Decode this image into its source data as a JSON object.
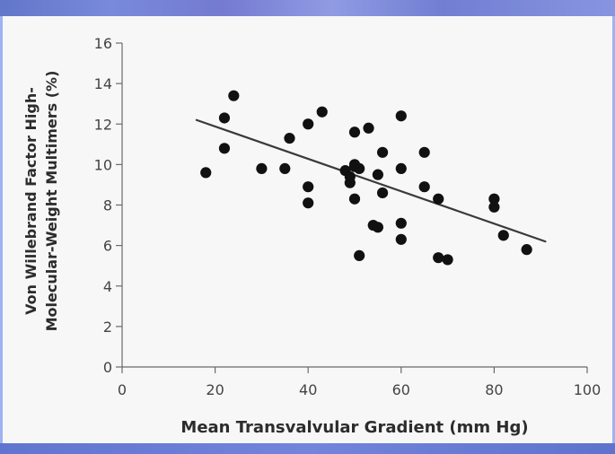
{
  "chart_data": {
    "type": "scatter",
    "xlabel": "Mean Transvalvular Gradient (mm Hg)",
    "ylabel": [
      "Von Willebrand Factor High-",
      "Molecular-Weight Multimers (%)"
    ],
    "xlim": [
      0,
      100
    ],
    "ylim": [
      0,
      16
    ],
    "xticks": [
      0,
      20,
      40,
      60,
      80,
      100
    ],
    "yticks": [
      0,
      2,
      4,
      6,
      8,
      10,
      12,
      14,
      16
    ],
    "grid": false,
    "trendline": {
      "x": [
        16,
        91
      ],
      "y": [
        12.2,
        6.2
      ]
    },
    "points": [
      {
        "x": 18,
        "y": 9.6
      },
      {
        "x": 22,
        "y": 12.3
      },
      {
        "x": 22,
        "y": 10.8
      },
      {
        "x": 24,
        "y": 13.4
      },
      {
        "x": 30,
        "y": 9.8
      },
      {
        "x": 35,
        "y": 9.8
      },
      {
        "x": 36,
        "y": 11.3
      },
      {
        "x": 40,
        "y": 12.0
      },
      {
        "x": 40,
        "y": 8.9
      },
      {
        "x": 40,
        "y": 8.1
      },
      {
        "x": 43,
        "y": 12.6
      },
      {
        "x": 48,
        "y": 9.7
      },
      {
        "x": 49,
        "y": 9.4
      },
      {
        "x": 49,
        "y": 9.1
      },
      {
        "x": 50,
        "y": 11.6
      },
      {
        "x": 50,
        "y": 10.0
      },
      {
        "x": 50,
        "y": 9.9
      },
      {
        "x": 50,
        "y": 8.3
      },
      {
        "x": 51,
        "y": 9.8
      },
      {
        "x": 51,
        "y": 5.5
      },
      {
        "x": 53,
        "y": 11.8
      },
      {
        "x": 54,
        "y": 7.0
      },
      {
        "x": 55,
        "y": 9.5
      },
      {
        "x": 55,
        "y": 6.9
      },
      {
        "x": 56,
        "y": 10.6
      },
      {
        "x": 56,
        "y": 8.6
      },
      {
        "x": 60,
        "y": 12.4
      },
      {
        "x": 60,
        "y": 9.8
      },
      {
        "x": 60,
        "y": 7.1
      },
      {
        "x": 60,
        "y": 6.3
      },
      {
        "x": 65,
        "y": 10.6
      },
      {
        "x": 65,
        "y": 8.9
      },
      {
        "x": 68,
        "y": 8.3
      },
      {
        "x": 68,
        "y": 5.4
      },
      {
        "x": 70,
        "y": 5.3
      },
      {
        "x": 80,
        "y": 8.3
      },
      {
        "x": 80,
        "y": 7.9
      },
      {
        "x": 82,
        "y": 6.5
      },
      {
        "x": 87,
        "y": 5.8
      }
    ]
  }
}
